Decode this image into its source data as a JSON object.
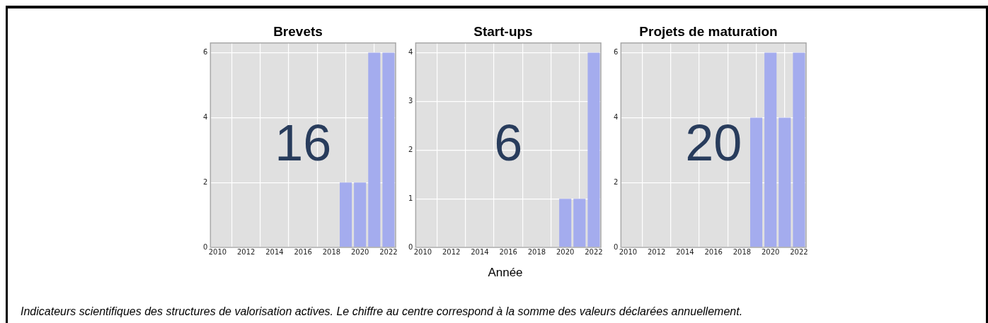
{
  "chart_data": [
    {
      "type": "bar",
      "title": "Brevets",
      "x": [
        2010,
        2011,
        2012,
        2013,
        2014,
        2015,
        2016,
        2017,
        2018,
        2019,
        2020,
        2021,
        2022
      ],
      "values": [
        0,
        0,
        0,
        0,
        0,
        0,
        0,
        0,
        0,
        2,
        2,
        6,
        6
      ],
      "color": "#a4acee",
      "xlim": [
        2009.5,
        2022.5
      ],
      "xticks": [
        2010,
        2012,
        2014,
        2016,
        2018,
        2020,
        2022
      ],
      "ylim": [
        0,
        6.3
      ],
      "yticks": [
        0,
        2,
        4,
        6
      ],
      "grid": true,
      "legend": false,
      "annotations": [
        "16"
      ]
    },
    {
      "type": "bar",
      "title": "Start-ups",
      "xlabel": "Année",
      "x": [
        2010,
        2011,
        2012,
        2013,
        2014,
        2015,
        2016,
        2017,
        2018,
        2019,
        2020,
        2021,
        2022
      ],
      "values": [
        0,
        0,
        0,
        0,
        0,
        0,
        0,
        0,
        0,
        0,
        1,
        1,
        4
      ],
      "color": "#a4acee",
      "xlim": [
        2009.5,
        2022.5
      ],
      "xticks": [
        2010,
        2012,
        2014,
        2016,
        2018,
        2020,
        2022
      ],
      "ylim": [
        0,
        4.2
      ],
      "yticks": [
        0,
        1,
        2,
        3,
        4
      ],
      "grid": true,
      "legend": false,
      "annotations": [
        "6"
      ]
    },
    {
      "type": "bar",
      "title": "Projets de maturation",
      "x": [
        2010,
        2011,
        2012,
        2013,
        2014,
        2015,
        2016,
        2017,
        2018,
        2019,
        2020,
        2021,
        2022
      ],
      "values": [
        0,
        0,
        0,
        0,
        0,
        0,
        0,
        0,
        0,
        4,
        6,
        4,
        6
      ],
      "color": "#a4acee",
      "xlim": [
        2009.5,
        2022.5
      ],
      "xticks": [
        2010,
        2012,
        2014,
        2016,
        2018,
        2020,
        2022
      ],
      "ylim": [
        0,
        6.3
      ],
      "yticks": [
        0,
        2,
        4,
        6
      ],
      "grid": true,
      "legend": false,
      "annotations": [
        "20",
        "Indicateurs scientifiques des structures de valorisation actives. Le chiffre au centre correspond à la somme des valeurs déclarées annuellement."
      ]
    }
  ]
}
